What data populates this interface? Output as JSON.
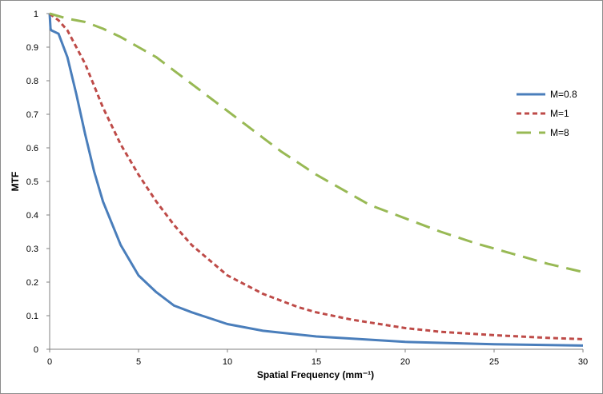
{
  "chart_data": {
    "type": "line",
    "title": "",
    "xlabel": "Spatial Frequency (mm⁻¹)",
    "ylabel": "MTF",
    "xlim": [
      0,
      30
    ],
    "ylim": [
      0,
      1
    ],
    "xticks": [
      0,
      5,
      10,
      15,
      20,
      25,
      30
    ],
    "yticks": [
      0,
      0.1,
      0.2,
      0.3,
      0.4,
      0.5,
      0.6,
      0.7,
      0.8,
      0.9,
      1
    ],
    "xtick_labels": [
      "0",
      "5",
      "10",
      "15",
      "20",
      "25",
      "30"
    ],
    "ytick_labels": [
      "0",
      "0.1",
      "0.2",
      "0.3",
      "0.4",
      "0.5",
      "0.6",
      "0.7",
      "0.8",
      "0.9",
      "1"
    ],
    "grid": false,
    "legend_position": "right",
    "series": [
      {
        "name": "M=0.8",
        "color": "#4a7ebb",
        "line_style": "solid",
        "x": [
          0,
          0.05,
          0.1,
          0.5,
          1,
          1.5,
          2,
          2.5,
          3,
          4,
          5,
          6,
          7,
          8,
          10,
          12,
          15,
          20,
          25,
          30
        ],
        "y": [
          1.0,
          0.955,
          0.95,
          0.94,
          0.87,
          0.76,
          0.64,
          0.53,
          0.44,
          0.31,
          0.22,
          0.17,
          0.13,
          0.11,
          0.075,
          0.055,
          0.038,
          0.022,
          0.015,
          0.011
        ]
      },
      {
        "name": "M=1",
        "color": "#be4b48",
        "line_style": "dashed",
        "x": [
          0,
          0.5,
          1,
          2,
          3,
          4,
          5,
          6,
          7,
          8,
          10,
          12,
          14,
          15,
          17,
          20,
          22,
          25,
          28,
          30
        ],
        "y": [
          1.0,
          0.98,
          0.95,
          0.85,
          0.72,
          0.61,
          0.52,
          0.44,
          0.37,
          0.31,
          0.22,
          0.165,
          0.125,
          0.11,
          0.088,
          0.063,
          0.052,
          0.042,
          0.034,
          0.03
        ]
      },
      {
        "name": "M=8",
        "color": "#98b954",
        "line_style": "long-dash",
        "x": [
          0,
          1,
          2,
          3,
          4,
          5,
          6,
          7,
          8,
          9,
          10,
          11,
          12,
          13,
          14,
          15,
          16,
          17,
          18,
          20,
          22,
          24,
          26,
          28,
          30
        ],
        "y": [
          1.0,
          0.985,
          0.975,
          0.955,
          0.93,
          0.9,
          0.87,
          0.83,
          0.79,
          0.75,
          0.71,
          0.67,
          0.63,
          0.59,
          0.555,
          0.52,
          0.49,
          0.46,
          0.43,
          0.39,
          0.35,
          0.315,
          0.285,
          0.255,
          0.23
        ]
      }
    ]
  }
}
